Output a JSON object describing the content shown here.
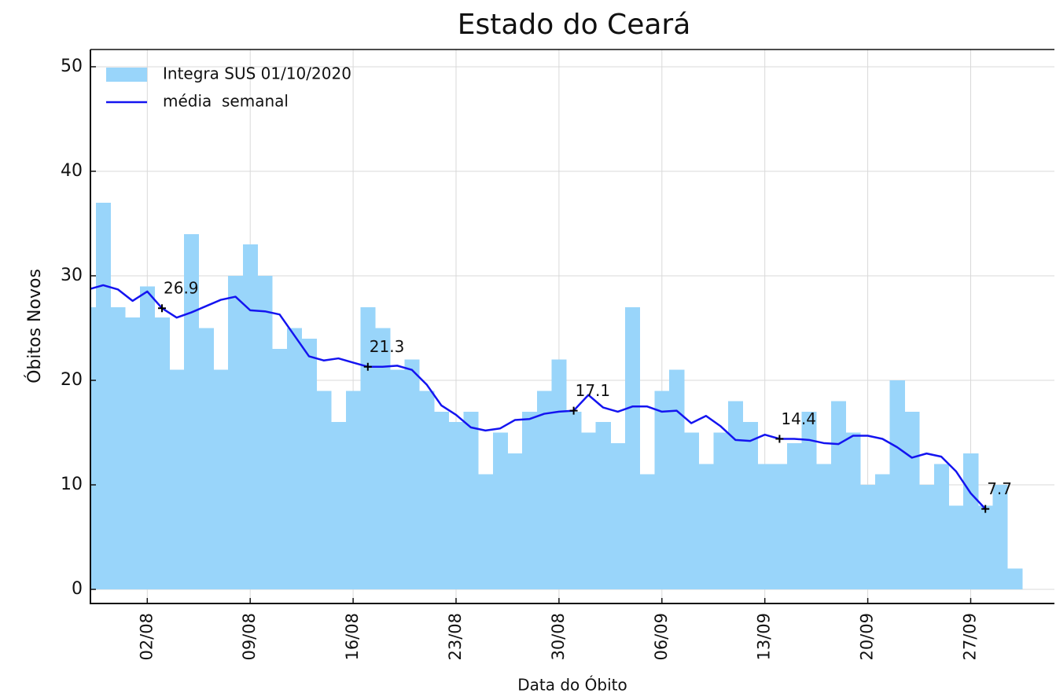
{
  "chart_data": {
    "type": "bar",
    "title": "Estado do Ceará",
    "xlabel": "Data do Óbito",
    "ylabel": "Óbitos Novos",
    "x": [
      "29/07",
      "30/07",
      "31/07",
      "01/08",
      "02/08",
      "03/08",
      "04/08",
      "05/08",
      "06/08",
      "07/08",
      "08/08",
      "09/08",
      "10/08",
      "11/08",
      "12/08",
      "13/08",
      "14/08",
      "15/08",
      "16/08",
      "17/08",
      "18/08",
      "19/08",
      "20/08",
      "21/08",
      "22/08",
      "23/08",
      "24/08",
      "25/08",
      "26/08",
      "27/08",
      "28/08",
      "29/08",
      "30/08",
      "31/08",
      "01/09",
      "02/09",
      "03/09",
      "04/09",
      "05/09",
      "06/09",
      "07/09",
      "08/09",
      "09/09",
      "10/09",
      "11/09",
      "12/09",
      "13/09",
      "14/09",
      "15/09",
      "16/09",
      "17/09",
      "18/09",
      "19/09",
      "20/09",
      "21/09",
      "22/09",
      "23/09",
      "24/09",
      "25/09",
      "26/09",
      "27/09",
      "28/09",
      "29/09",
      "30/09"
    ],
    "series": [
      {
        "name": "Integra SUS 01/10/2020",
        "type": "bar",
        "color": "#99d5fa",
        "values": [
          27,
          37,
          27,
          26,
          29,
          26,
          21,
          34,
          25,
          21,
          30,
          33,
          30,
          23,
          25,
          24,
          19,
          16,
          19,
          27,
          25,
          21,
          22,
          19,
          17,
          16,
          17,
          11,
          15,
          13,
          17,
          19,
          22,
          17,
          15,
          16,
          14,
          27,
          11,
          19,
          21,
          15,
          12,
          15,
          18,
          16,
          12,
          12,
          14,
          17,
          12,
          18,
          15,
          10,
          11,
          20,
          17,
          10,
          12,
          8,
          13,
          8,
          10,
          2
        ]
      },
      {
        "name": "média  semanal",
        "type": "line",
        "color": "#1414f0",
        "values": [
          28.7,
          29.1,
          28.7,
          27.6,
          28.5,
          26.9,
          26.0,
          26.5,
          27.1,
          27.7,
          28.0,
          26.7,
          26.6,
          26.3,
          24.3,
          22.3,
          21.9,
          22.1,
          21.7,
          21.3,
          21.3,
          21.4,
          21.0,
          19.6,
          17.6,
          16.7,
          15.5,
          15.2,
          15.4,
          16.2,
          16.3,
          16.8,
          17.0,
          17.1,
          18.6,
          17.4,
          17.0,
          17.5,
          17.5,
          17.0,
          17.1,
          15.9,
          16.6,
          15.6,
          14.3,
          14.2,
          14.8,
          14.4,
          14.4,
          14.3,
          14.0,
          13.9,
          14.7,
          14.7,
          14.4,
          13.6,
          12.6,
          13.0,
          12.7,
          11.3,
          9.2,
          7.7,
          null,
          null
        ]
      }
    ],
    "annotations": [
      {
        "x": "03/08",
        "value": 26.9
      },
      {
        "x": "17/08",
        "value": 21.3
      },
      {
        "x": "31/08",
        "value": 17.1
      },
      {
        "x": "14/09",
        "value": 14.4
      },
      {
        "x": "28/09",
        "value": 7.7
      }
    ],
    "ylim": [
      -1.35,
      51.65
    ],
    "yticks": [
      0,
      10,
      20,
      30,
      40,
      50
    ],
    "xticks": [
      "02/08",
      "09/08",
      "16/08",
      "23/08",
      "30/08",
      "06/09",
      "13/09",
      "20/09",
      "27/09"
    ],
    "grid": true,
    "legend": "upper left"
  }
}
